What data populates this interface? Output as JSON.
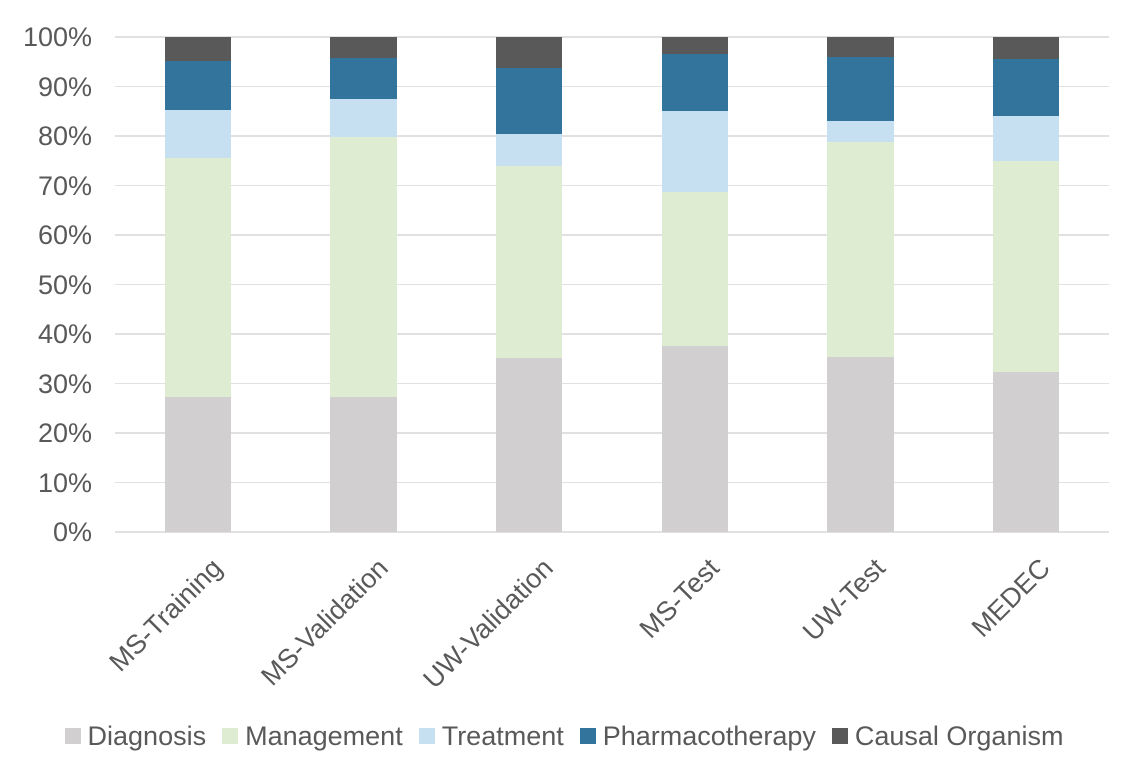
{
  "chart_data": {
    "type": "bar",
    "variant": "stacked-100-percent-column",
    "title": "",
    "xlabel": "",
    "ylabel": "",
    "categories": [
      "MS-Training",
      "MS-Validation",
      "UW-Validation",
      "MS-Test",
      "UW-Test",
      "MEDEC"
    ],
    "series": [
      {
        "name": "Diagnosis",
        "color": "#D1CFCF",
        "values": [
          27.2,
          27.2,
          35.2,
          37.5,
          35.4,
          32.4
        ]
      },
      {
        "name": "Management",
        "color": "#DEECD2",
        "values": [
          48.4,
          52.6,
          38.8,
          31.1,
          43.3,
          42.6
        ]
      },
      {
        "name": "Treatment",
        "color": "#C6E0F2",
        "values": [
          9.6,
          7.6,
          6.4,
          16.4,
          4.3,
          9.0
        ]
      },
      {
        "name": "Pharmacotherapy",
        "color": "#33749C",
        "values": [
          9.9,
          8.3,
          13.3,
          11.6,
          13.0,
          11.5
        ]
      },
      {
        "name": "Causal Organism",
        "color": "#595959",
        "values": [
          4.9,
          4.3,
          6.3,
          3.4,
          4.0,
          4.5
        ]
      }
    ],
    "y_axis": {
      "min": 0,
      "max": 100,
      "tick_step": 10,
      "ticks": [
        "0%",
        "10%",
        "20%",
        "30%",
        "40%",
        "50%",
        "60%",
        "70%",
        "80%",
        "90%",
        "100%"
      ],
      "grid": true
    },
    "legend_position": "bottom",
    "colors": {
      "text": "#595959",
      "gridline": "#E1E1E1",
      "background": "#FFFFFF"
    }
  }
}
